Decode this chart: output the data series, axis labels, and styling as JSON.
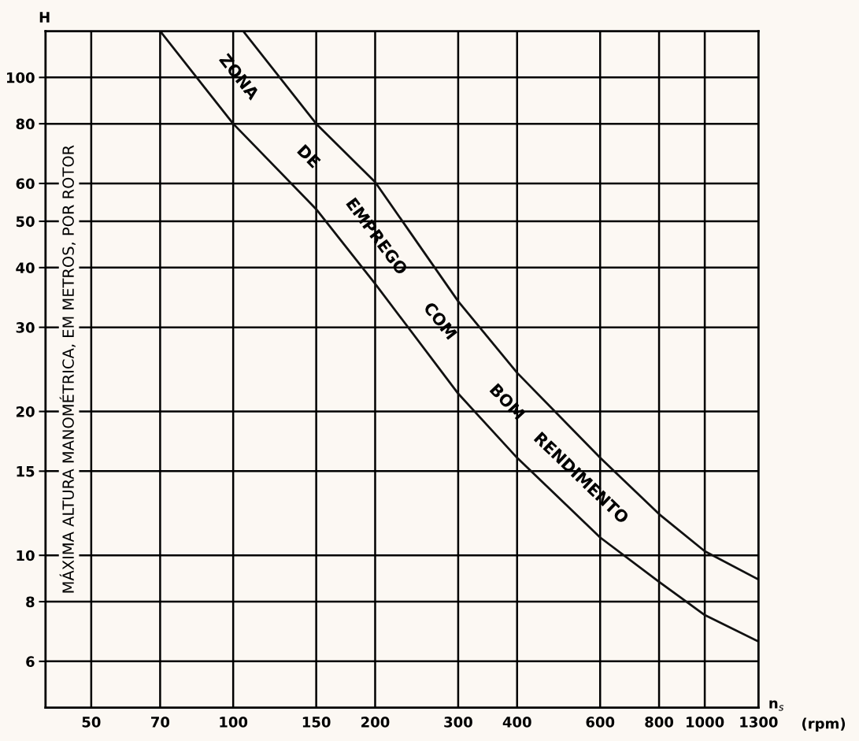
{
  "chart_data": {
    "type": "line",
    "ylabel": "MÁXIMA ALTURA MANOMÉTRICA, EM METROS, POR ROTOR",
    "xlabel": "n$_{s}$",
    "log": "xy",
    "grid": true,
    "marker": "none",
    "line_style": "solid",
    "xlim": [
      40,
      1300
    ],
    "xticks": [
      50,
      70,
      100,
      150,
      200,
      300,
      400,
      600,
      800,
      1000,
      1300
    ],
    "ylim": [
      4.8,
      125
    ],
    "yticks": [
      6,
      8,
      10,
      15,
      20,
      30,
      40,
      50,
      60,
      80,
      100
    ],
    "series": [
      {
        "color": "#111111",
        "x": [
          105,
          150,
          200,
          300,
          400,
          600,
          800,
          1000,
          1300
        ],
        "values": [
          125,
          80,
          60.4,
          34,
          24.1,
          16,
          12.2,
          10.2,
          8.9
        ]
      },
      {
        "color": "#111111",
        "x": [
          70,
          100,
          150,
          200,
          300,
          400,
          600,
          800,
          1000,
          1300
        ],
        "values": [
          125,
          80,
          53,
          37,
          21.8,
          16,
          10.9,
          8.8,
          7.5,
          6.6
        ]
      }
    ],
    "annotations": [
      "ZONA",
      "DE",
      "EMPREGO",
      "COM",
      "BOM",
      "RENDIMENTO",
      "H",
      "(rpm)"
    ]
  }
}
